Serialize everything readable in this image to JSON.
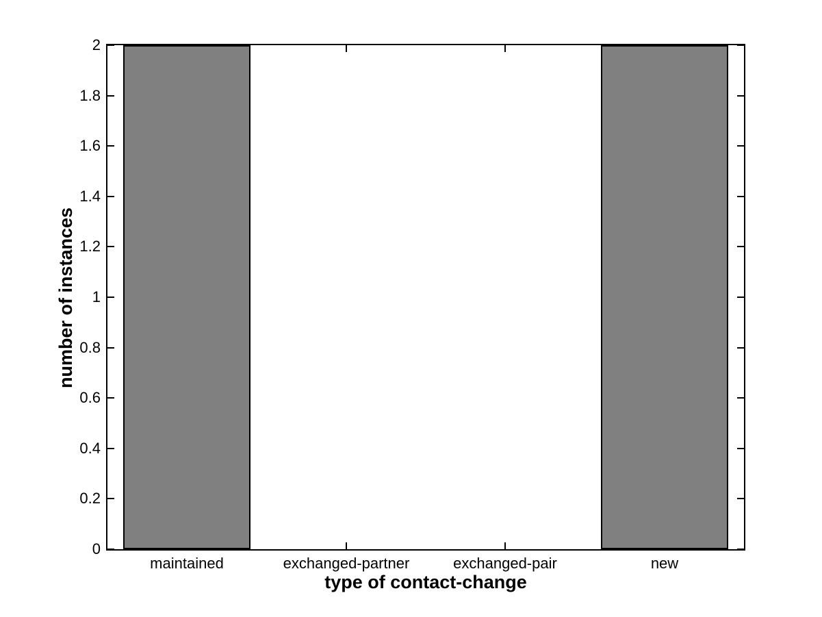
{
  "chart_data": {
    "type": "bar",
    "title": "",
    "xlabel": "type of contact-change",
    "ylabel": "number of instances",
    "categories": [
      "maintained",
      "exchanged-partner",
      "exchanged-pair",
      "new"
    ],
    "values": [
      2,
      0,
      0,
      2
    ],
    "xlim": [
      0.5,
      4.5
    ],
    "ylim": [
      0,
      2
    ],
    "yticks": [
      0,
      0.2,
      0.4,
      0.6,
      0.8,
      1,
      1.2,
      1.4,
      1.6,
      1.8,
      2
    ],
    "ytick_labels": [
      "0",
      "0.2",
      "0.4",
      "0.6",
      "0.8",
      "1",
      "1.2",
      "1.4",
      "1.6",
      "1.8",
      "2"
    ],
    "bar_width_fraction": 0.8,
    "bar_color": "#808080",
    "bar_edge_color": "#000000",
    "axis_color": "#000000",
    "background": "#ffffff",
    "grid": false,
    "legend": null
  }
}
